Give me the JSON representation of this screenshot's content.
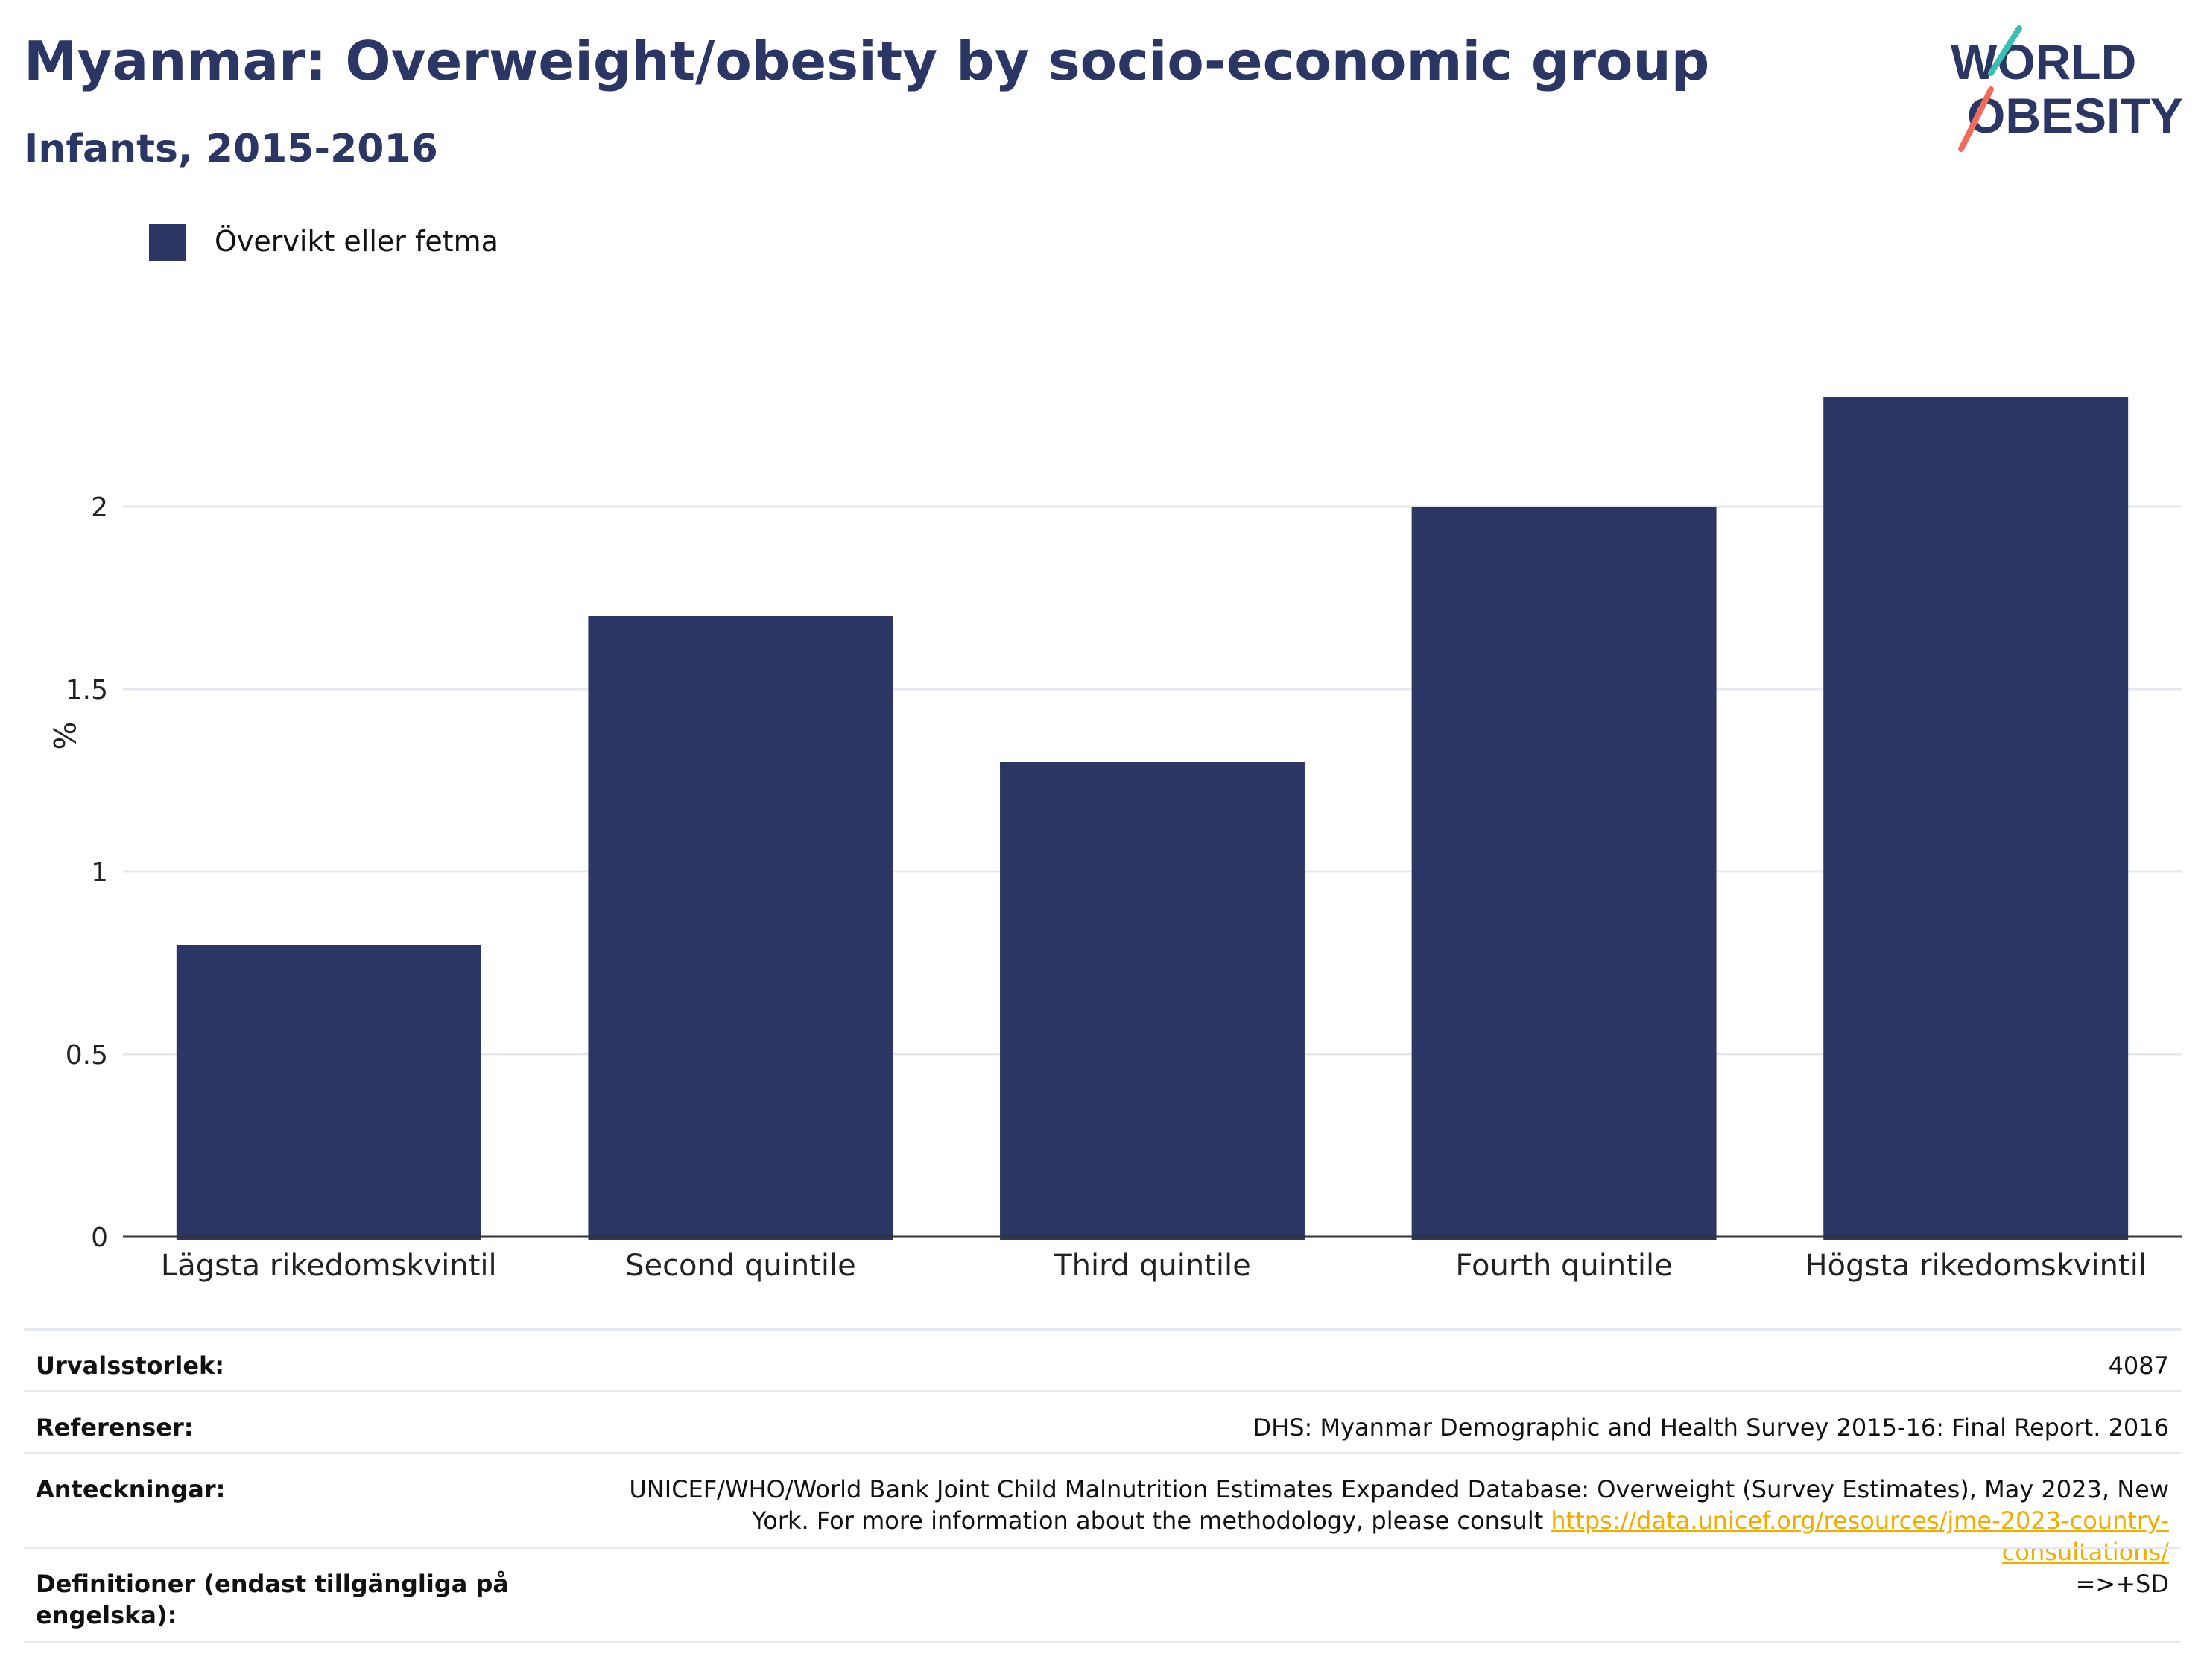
{
  "header": {
    "title": "Myanmar: Overweight/obesity by socio-economic group",
    "subtitle": "Infants, 2015-2016"
  },
  "logo": {
    "line1": "WORLD",
    "line2": "OBESITY"
  },
  "colors": {
    "bar": "#2b3664",
    "title": "#2b3664",
    "grid": "#e6e8ef",
    "link": "#f0ad00",
    "logo_teal": "#3bbfb5",
    "logo_coral": "#ef6b5a"
  },
  "chart_data": {
    "type": "bar",
    "categories": [
      "Lägsta rikedomskvintil",
      "Second quintile",
      "Third quintile",
      "Fourth quintile",
      "Högsta rikedomskvintil"
    ],
    "series": [
      {
        "name": "Övervikt eller fetma",
        "values": [
          0.8,
          1.7,
          1.3,
          2.0,
          2.3
        ]
      }
    ],
    "ylabel": "%",
    "ylim": [
      0,
      2.5
    ],
    "yticks": [
      "0",
      "0.5",
      "1",
      "1.5",
      "2"
    ],
    "grid": true,
    "legend_position": "top-left"
  },
  "info": {
    "rows": [
      {
        "key": "Urvalsstorlek:",
        "value": "4087"
      },
      {
        "key": "Referenser:",
        "value": "DHS: Myanmar Demographic and Health Survey 2015-16: Final Report. 2016"
      },
      {
        "key": "Anteckningar:",
        "value": "UNICEF/WHO/World Bank Joint Child Malnutrition Estimates Expanded Database: Overweight (Survey Estimates), May 2023, New York. For more information about the methodology, please consult",
        "link": "https://data.unicef.org/resources/jme-2023-country-consultations/"
      },
      {
        "key": "Definitioner (endast tillgängliga på engelska):",
        "value": "=>+SD"
      }
    ]
  }
}
